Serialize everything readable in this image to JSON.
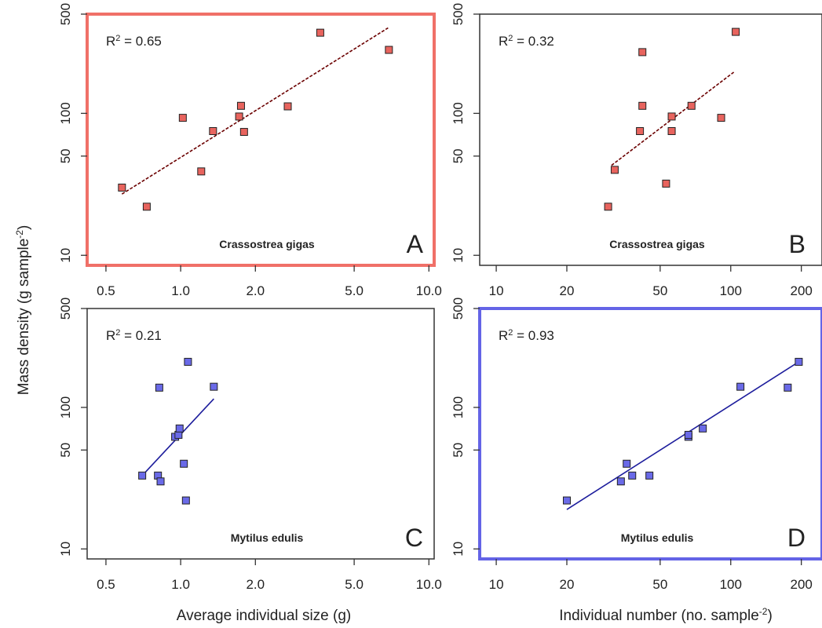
{
  "figure": {
    "ylabel": "Mass density (g sample",
    "ylabel_sup": "-2",
    "ylabel_end": ")",
    "xlabel_left": "Average individual size (g)",
    "xlabel_right": "Individual number (no. sample",
    "xlabel_right_sup": "-2",
    "xlabel_right_end": ")"
  },
  "chart_data": [
    {
      "type": "scatter",
      "panel": "A",
      "species": "Crassostrea gigas",
      "r2_prefix": "R",
      "r2_sup": "2",
      "r2_value": " = 0.65",
      "xlabel": "Average individual size (g)",
      "ylabel": "Mass density (g sample-2)",
      "xscale": "log",
      "yscale": "log",
      "xlim": [
        0.42,
        10.5
      ],
      "ylim": [
        8.5,
        500
      ],
      "xticks": [
        0.5,
        1.0,
        2.0,
        5.0,
        10.0
      ],
      "xtick_labels": [
        "0.5",
        "1.0",
        "2.0",
        "5.0",
        "10.0"
      ],
      "yticks": [
        10,
        50,
        100,
        500
      ],
      "ytick_labels": [
        "10",
        "50",
        "100",
        "500"
      ],
      "color": "#e8645e",
      "frame_color": "#f07068",
      "trend_color": "#6b0000",
      "trend_style": "dashed",
      "points": [
        [
          0.58,
          30
        ],
        [
          0.73,
          22
        ],
        [
          1.02,
          93
        ],
        [
          1.21,
          39
        ],
        [
          1.35,
          75
        ],
        [
          1.72,
          95
        ],
        [
          1.75,
          113
        ],
        [
          1.8,
          74
        ],
        [
          2.7,
          112
        ],
        [
          3.65,
          370
        ],
        [
          6.9,
          280
        ]
      ],
      "trend": [
        [
          0.58,
          27
        ],
        [
          6.85,
          400
        ]
      ]
    },
    {
      "type": "scatter",
      "panel": "B",
      "species": "Crassostrea gigas",
      "r2_prefix": "R",
      "r2_sup": "2",
      "r2_value": " = 0.32",
      "xlabel": "Individual number (no. sample-2)",
      "ylabel": "Mass density (g sample-2)",
      "xscale": "log",
      "yscale": "log",
      "xlim": [
        8.5,
        245
      ],
      "ylim": [
        8.5,
        500
      ],
      "xticks": [
        10,
        20,
        50,
        100,
        200
      ],
      "xtick_labels": [
        "10",
        "20",
        "50",
        "100",
        "200"
      ],
      "yticks": [
        10,
        50,
        100,
        500
      ],
      "ytick_labels": [
        "10",
        "50",
        "100",
        "500"
      ],
      "color": "#e8645e",
      "frame_color": "#333333",
      "trend_color": "#6b0000",
      "trend_style": "dashed",
      "points": [
        [
          30,
          22
        ],
        [
          32,
          40
        ],
        [
          41,
          75
        ],
        [
          42,
          113
        ],
        [
          42,
          270
        ],
        [
          53,
          32
        ],
        [
          56,
          95
        ],
        [
          56,
          75
        ],
        [
          68,
          113
        ],
        [
          91,
          93
        ],
        [
          105,
          375
        ]
      ],
      "trend": [
        [
          31,
          43
        ],
        [
          103,
          195
        ]
      ]
    },
    {
      "type": "scatter",
      "panel": "C",
      "species": "Mytilus edulis",
      "r2_prefix": "R",
      "r2_sup": "2",
      "r2_value": " = 0.21",
      "xlabel": "Average individual size (g)",
      "ylabel": "Mass density (g sample-2)",
      "xscale": "log",
      "yscale": "log",
      "xlim": [
        0.42,
        10.5
      ],
      "ylim": [
        8.5,
        500
      ],
      "xticks": [
        0.5,
        1.0,
        2.0,
        5.0,
        10.0
      ],
      "xtick_labels": [
        "0.5",
        "1.0",
        "2.0",
        "5.0",
        "10.0"
      ],
      "yticks": [
        10,
        50,
        100,
        500
      ],
      "ytick_labels": [
        "10",
        "50",
        "100",
        "500"
      ],
      "color": "#6a6ae8",
      "frame_color": "#333333",
      "trend_color": "#1c1c9c",
      "trend_style": "solid",
      "points": [
        [
          0.7,
          33
        ],
        [
          0.81,
          33
        ],
        [
          0.82,
          138
        ],
        [
          0.83,
          30
        ],
        [
          0.95,
          62
        ],
        [
          0.98,
          64
        ],
        [
          0.99,
          71
        ],
        [
          1.03,
          40
        ],
        [
          1.05,
          22
        ],
        [
          1.07,
          210
        ],
        [
          1.36,
          140
        ]
      ],
      "trend": [
        [
          0.7,
          33
        ],
        [
          1.36,
          115
        ]
      ]
    },
    {
      "type": "scatter",
      "panel": "D",
      "species": "Mytilus edulis",
      "r2_prefix": "R",
      "r2_sup": "2",
      "r2_value": " = 0.93",
      "xlabel": "Individual number (no. sample-2)",
      "ylabel": "Mass density (g sample-2)",
      "xscale": "log",
      "yscale": "log",
      "xlim": [
        8.5,
        245
      ],
      "ylim": [
        8.5,
        500
      ],
      "xticks": [
        10,
        20,
        50,
        100,
        200
      ],
      "xtick_labels": [
        "10",
        "20",
        "50",
        "100",
        "200"
      ],
      "yticks": [
        10,
        50,
        100,
        500
      ],
      "ytick_labels": [
        "10",
        "50",
        "100",
        "500"
      ],
      "color": "#6a6ae8",
      "frame_color": "#6464e6",
      "trend_color": "#1c1c9c",
      "trend_style": "solid",
      "points": [
        [
          20,
          22
        ],
        [
          34,
          30
        ],
        [
          36,
          40
        ],
        [
          38,
          33
        ],
        [
          45,
          33
        ],
        [
          66,
          62
        ],
        [
          66,
          64
        ],
        [
          76,
          71
        ],
        [
          110,
          140
        ],
        [
          175,
          138
        ],
        [
          195,
          210
        ]
      ],
      "trend": [
        [
          20,
          19
        ],
        [
          195,
          210
        ]
      ]
    }
  ]
}
